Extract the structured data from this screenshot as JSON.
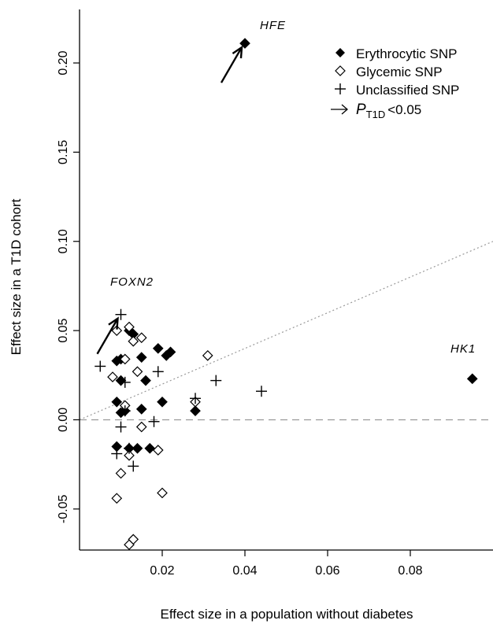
{
  "chart_data": {
    "type": "scatter",
    "xlabel": "Effect size in a population without diabetes",
    "ylabel": "Effect size in a T1D cohort",
    "xlim": [
      0.0,
      0.1
    ],
    "ylim": [
      -0.073,
      0.23
    ],
    "x_ticks": [
      0.02,
      0.04,
      0.06,
      0.08
    ],
    "x_tick_labels": [
      "0.02",
      "0.04",
      "0.06",
      "0.08"
    ],
    "y_ticks": [
      -0.05,
      0.0,
      0.05,
      0.1,
      0.15,
      0.2
    ],
    "y_tick_labels": [
      "-0.05",
      "0.00",
      "0.05",
      "0.10",
      "0.15",
      "0.20"
    ],
    "grid": false,
    "legend_position": "top-right",
    "legend": {
      "erythrocytic": "Erythrocytic SNP",
      "glycemic": "Glycemic SNP",
      "unclassified": "Unclassified SNP",
      "p_prefix": "P",
      "p_subscript": "T1D",
      "p_suffix": "<0.05"
    },
    "reference_lines": [
      {
        "style": "dashed",
        "color": "#999999",
        "y": 0.0
      },
      {
        "style": "dotted",
        "color": "#999999",
        "slope": 1,
        "intercept": 0
      }
    ],
    "annotations": [
      {
        "label": "HFE",
        "x": 0.04,
        "y": 0.211
      },
      {
        "label": "FOXN2",
        "x": 0.01,
        "y": 0.059
      },
      {
        "label": "HK1",
        "x": 0.095,
        "y": 0.023
      }
    ],
    "series": [
      {
        "name": "Erythrocytic SNP",
        "marker": "filled-diamond",
        "points": [
          [
            0.04,
            0.211
          ],
          [
            0.095,
            0.023
          ],
          [
            0.012,
            0.05
          ],
          [
            0.013,
            0.048
          ],
          [
            0.015,
            0.035
          ],
          [
            0.019,
            0.04
          ],
          [
            0.021,
            0.036
          ],
          [
            0.022,
            0.038
          ],
          [
            0.016,
            0.022
          ],
          [
            0.009,
            0.033
          ],
          [
            0.01,
            0.034
          ],
          [
            0.01,
            0.022
          ],
          [
            0.009,
            0.01
          ],
          [
            0.01,
            0.004
          ],
          [
            0.011,
            0.005
          ],
          [
            0.015,
            0.006
          ],
          [
            0.02,
            0.01
          ],
          [
            0.028,
            0.005
          ],
          [
            0.009,
            -0.015
          ],
          [
            0.012,
            -0.016
          ],
          [
            0.014,
            -0.016
          ],
          [
            0.017,
            -0.016
          ]
        ]
      },
      {
        "name": "Glycemic SNP",
        "marker": "open-diamond",
        "points": [
          [
            0.009,
            0.05
          ],
          [
            0.012,
            0.052
          ],
          [
            0.013,
            0.044
          ],
          [
            0.015,
            0.046
          ],
          [
            0.011,
            0.034
          ],
          [
            0.008,
            0.024
          ],
          [
            0.014,
            0.027
          ],
          [
            0.031,
            0.036
          ],
          [
            0.011,
            0.008
          ],
          [
            0.015,
            -0.004
          ],
          [
            0.028,
            0.01
          ],
          [
            0.019,
            -0.017
          ],
          [
            0.012,
            -0.02
          ],
          [
            0.01,
            -0.03
          ],
          [
            0.009,
            -0.044
          ],
          [
            0.02,
            -0.041
          ],
          [
            0.013,
            -0.067
          ],
          [
            0.012,
            -0.07
          ]
        ]
      },
      {
        "name": "Unclassified SNP",
        "marker": "plus",
        "points": [
          [
            0.01,
            0.059
          ],
          [
            0.005,
            0.03
          ],
          [
            0.011,
            0.021
          ],
          [
            0.019,
            0.027
          ],
          [
            0.033,
            0.022
          ],
          [
            0.044,
            0.016
          ],
          [
            0.028,
            0.012
          ],
          [
            0.011,
            0.005
          ],
          [
            0.01,
            -0.004
          ],
          [
            0.018,
            -0.001
          ],
          [
            0.009,
            -0.019
          ],
          [
            0.012,
            -0.016
          ],
          [
            0.013,
            -0.026
          ]
        ]
      }
    ]
  }
}
